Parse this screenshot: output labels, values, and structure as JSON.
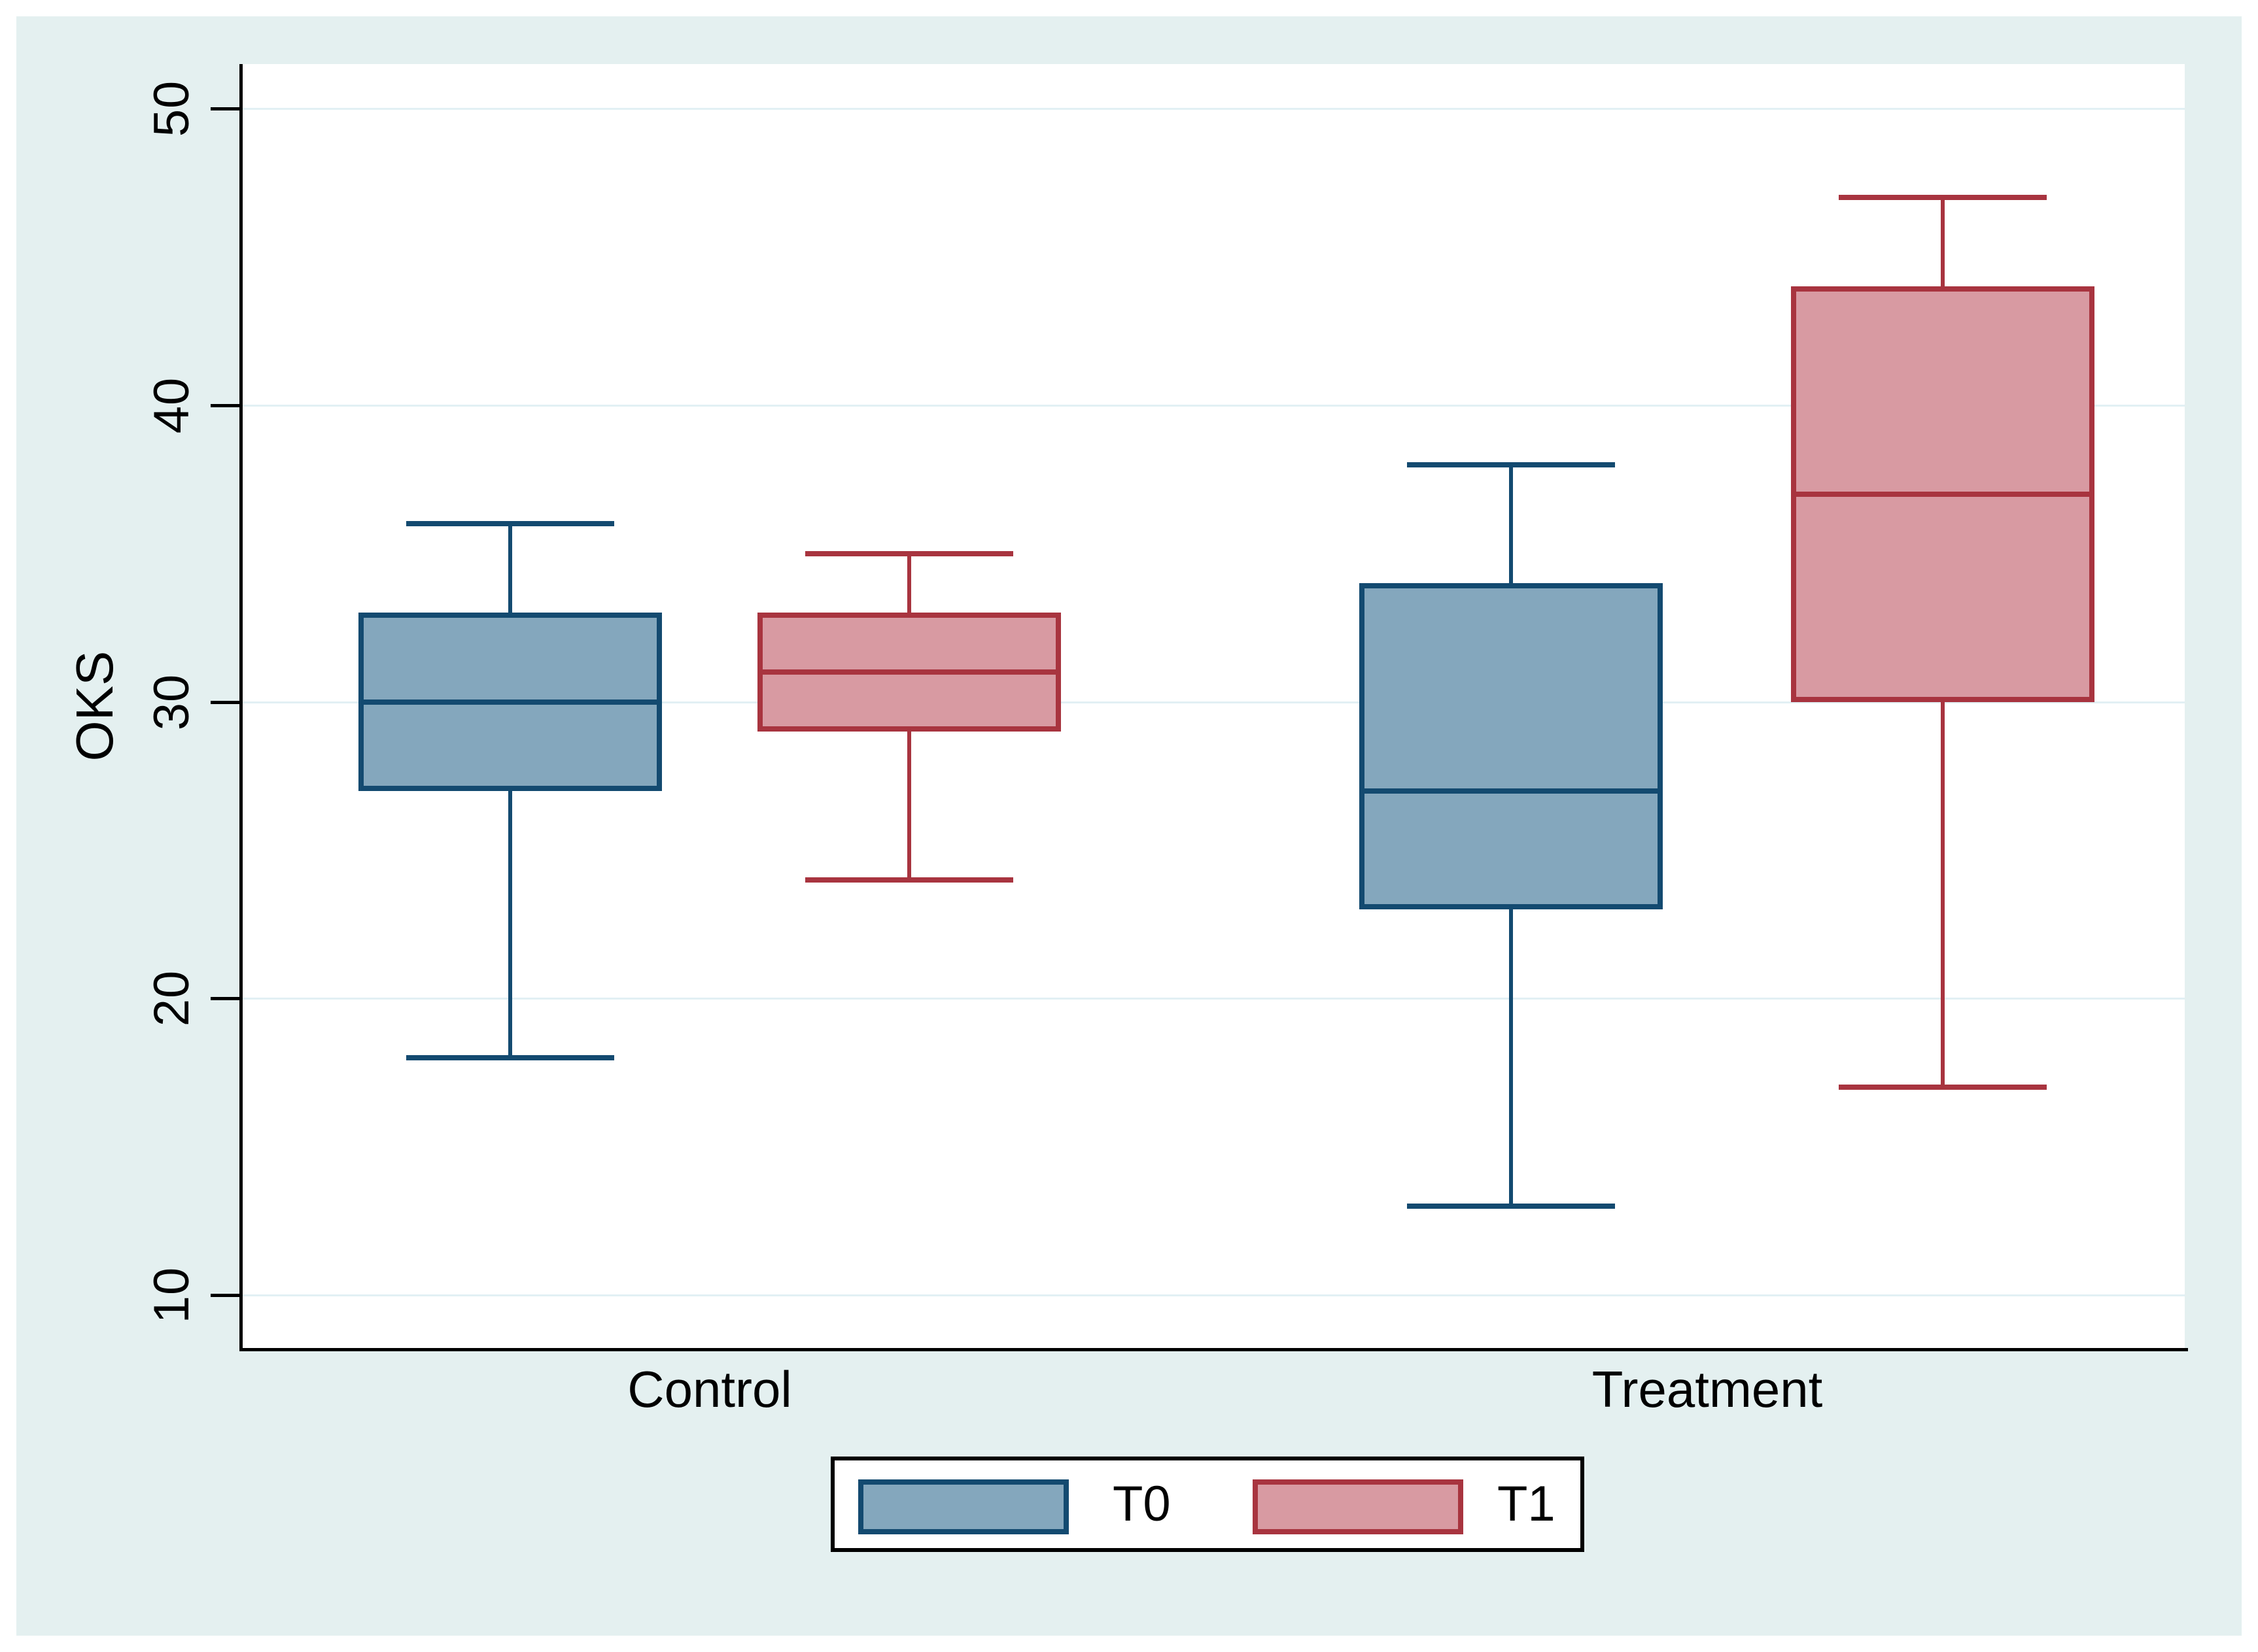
{
  "figure": {
    "outer_background": "#ffffff",
    "canvas_background": "#e4f0f0",
    "plot_background": "#ffffff",
    "grid_color": "#e2f0f4",
    "axis_color": "#000000"
  },
  "chart_data": {
    "type": "box",
    "title": "",
    "ylabel": "OKS",
    "xlabel": "",
    "categories": [
      "Control",
      "Treatment"
    ],
    "yticks": [
      10,
      20,
      30,
      40,
      50
    ],
    "ylim": [
      8,
      52
    ],
    "grid": true,
    "legend_position": "bottom-center",
    "series": [
      {
        "name": "T0",
        "fill": "#84a7bd",
        "stroke": "#134a70",
        "boxes": [
          {
            "category": "Control",
            "min": 18,
            "q1": 27,
            "median": 30,
            "q3": 33,
            "max": 36
          },
          {
            "category": "Treatment",
            "min": 13,
            "q1": 23,
            "median": 27,
            "q3": 34,
            "max": 38
          }
        ]
      },
      {
        "name": "T1",
        "fill": "#d89aa2",
        "stroke": "#a8343f",
        "boxes": [
          {
            "category": "Control",
            "min": 24,
            "q1": 29,
            "median": 31,
            "q3": 33,
            "max": 35
          },
          {
            "category": "Treatment",
            "min": 17,
            "q1": 30,
            "median": 37,
            "q3": 44,
            "max": 47
          }
        ]
      }
    ]
  }
}
